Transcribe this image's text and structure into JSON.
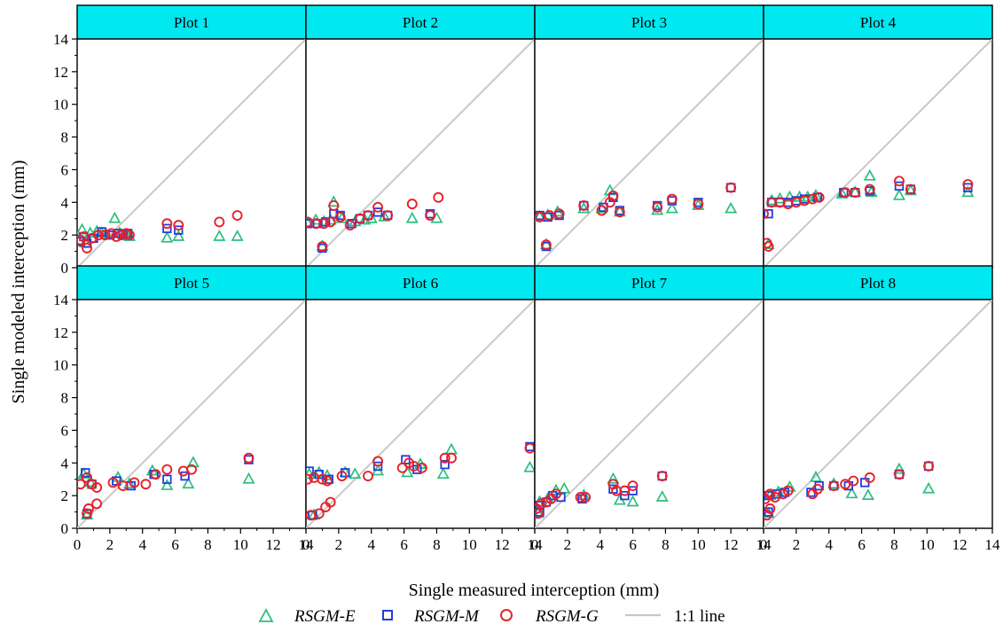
{
  "chart_data": {
    "type": "scatter",
    "xlabel": "Single measured interception (mm)",
    "ylabel": "Single modeled interception (mm)",
    "xlim": [
      0,
      14
    ],
    "ylim": [
      0,
      14
    ],
    "xticks": [
      0,
      2,
      4,
      6,
      8,
      10,
      12,
      14
    ],
    "yticks": [
      0,
      2,
      4,
      6,
      8,
      10,
      12,
      14
    ],
    "grid": false,
    "legend_position": "bottom",
    "legend": [
      {
        "key": "E",
        "label": "RSGM-E",
        "marker": "triangle",
        "color": "#2dbe7e"
      },
      {
        "key": "M",
        "label": "RSGM-M",
        "marker": "square",
        "color": "#1f3ee0"
      },
      {
        "key": "G",
        "label": "RSGM-G",
        "marker": "circle",
        "color": "#e8202a"
      },
      {
        "key": "line",
        "label": "1:1 line",
        "marker": "line",
        "color": "#c8c8c8"
      }
    ],
    "strip_color": "#00e8f0",
    "panels": [
      {
        "title": "Plot 1",
        "E": [
          [
            0.3,
            2.3
          ],
          [
            0.8,
            2.1
          ],
          [
            1.2,
            2.2
          ],
          [
            1.8,
            2.0
          ],
          [
            2.3,
            3.0
          ],
          [
            2.6,
            2.1
          ],
          [
            3.0,
            2.0
          ],
          [
            3.2,
            1.9
          ],
          [
            5.5,
            1.8
          ],
          [
            6.2,
            1.9
          ],
          [
            8.7,
            1.9
          ],
          [
            9.8,
            1.9
          ],
          [
            0.5,
            1.5
          ],
          [
            1.5,
            2.1
          ]
        ],
        "M": [
          [
            0.2,
            1.6
          ],
          [
            0.6,
            1.5
          ],
          [
            1.0,
            1.8
          ],
          [
            1.5,
            2.2
          ],
          [
            2.0,
            2.0
          ],
          [
            2.5,
            2.1
          ],
          [
            2.8,
            2.0
          ],
          [
            3.1,
            2.1
          ],
          [
            5.5,
            2.4
          ],
          [
            6.2,
            2.3
          ],
          [
            0.4,
            1.9
          ]
        ],
        "G": [
          [
            0.2,
            1.7
          ],
          [
            0.4,
            1.9
          ],
          [
            0.6,
            1.2
          ],
          [
            0.9,
            1.8
          ],
          [
            1.3,
            2.0
          ],
          [
            1.7,
            2.0
          ],
          [
            2.1,
            2.1
          ],
          [
            2.4,
            1.9
          ],
          [
            2.7,
            2.0
          ],
          [
            3.0,
            2.1
          ],
          [
            3.2,
            2.0
          ],
          [
            5.5,
            2.7
          ],
          [
            6.2,
            2.6
          ],
          [
            8.7,
            2.8
          ],
          [
            9.8,
            3.2
          ]
        ]
      },
      {
        "title": "Plot 2",
        "E": [
          [
            0.1,
            2.7
          ],
          [
            0.6,
            2.9
          ],
          [
            1.1,
            2.8
          ],
          [
            1.5,
            2.9
          ],
          [
            1.7,
            4.0
          ],
          [
            2.2,
            3.0
          ],
          [
            3.0,
            2.8
          ],
          [
            3.6,
            2.9
          ],
          [
            4.0,
            3.0
          ],
          [
            4.8,
            3.1
          ],
          [
            6.5,
            3.0
          ],
          [
            8.0,
            3.0
          ],
          [
            1.0,
            1.3
          ]
        ],
        "M": [
          [
            0.1,
            2.7
          ],
          [
            0.7,
            2.7
          ],
          [
            1.2,
            2.8
          ],
          [
            1.7,
            3.3
          ],
          [
            2.1,
            3.2
          ],
          [
            2.8,
            2.7
          ],
          [
            3.3,
            3.0
          ],
          [
            3.8,
            3.2
          ],
          [
            4.4,
            3.4
          ],
          [
            5.0,
            3.2
          ],
          [
            7.6,
            3.3
          ],
          [
            1.0,
            1.2
          ]
        ],
        "G": [
          [
            0.1,
            2.8
          ],
          [
            0.6,
            2.7
          ],
          [
            1.1,
            2.7
          ],
          [
            1.5,
            2.8
          ],
          [
            1.7,
            3.8
          ],
          [
            2.1,
            3.1
          ],
          [
            2.7,
            2.6
          ],
          [
            3.3,
            3.0
          ],
          [
            3.8,
            3.2
          ],
          [
            4.4,
            3.7
          ],
          [
            5.0,
            3.2
          ],
          [
            6.5,
            3.9
          ],
          [
            7.6,
            3.2
          ],
          [
            8.1,
            4.3
          ],
          [
            1.0,
            1.3
          ]
        ]
      },
      {
        "title": "Plot 3",
        "E": [
          [
            0.3,
            3.1
          ],
          [
            0.8,
            3.2
          ],
          [
            1.4,
            3.4
          ],
          [
            3.0,
            3.6
          ],
          [
            4.1,
            3.6
          ],
          [
            4.6,
            4.7
          ],
          [
            5.2,
            3.4
          ],
          [
            7.5,
            3.5
          ],
          [
            8.4,
            3.6
          ],
          [
            10.0,
            3.8
          ],
          [
            12.0,
            3.6
          ],
          [
            0.7,
            1.4
          ]
        ],
        "M": [
          [
            0.3,
            3.2
          ],
          [
            0.8,
            3.1
          ],
          [
            1.5,
            3.2
          ],
          [
            3.0,
            3.8
          ],
          [
            4.2,
            3.7
          ],
          [
            4.8,
            4.3
          ],
          [
            5.2,
            3.5
          ],
          [
            7.5,
            3.8
          ],
          [
            8.4,
            4.1
          ],
          [
            10.0,
            4.0
          ],
          [
            12.0,
            4.9
          ],
          [
            0.7,
            1.3
          ]
        ],
        "G": [
          [
            0.3,
            3.1
          ],
          [
            0.9,
            3.2
          ],
          [
            1.5,
            3.3
          ],
          [
            3.0,
            3.8
          ],
          [
            4.1,
            3.5
          ],
          [
            4.6,
            4.0
          ],
          [
            4.8,
            4.4
          ],
          [
            5.2,
            3.4
          ],
          [
            7.5,
            3.7
          ],
          [
            8.4,
            4.2
          ],
          [
            10.0,
            3.9
          ],
          [
            12.0,
            4.9
          ],
          [
            0.7,
            1.4
          ]
        ]
      },
      {
        "title": "Plot 4",
        "E": [
          [
            0.5,
            4.1
          ],
          [
            1.0,
            4.2
          ],
          [
            1.6,
            4.3
          ],
          [
            2.2,
            4.3
          ],
          [
            2.7,
            4.3
          ],
          [
            3.2,
            4.4
          ],
          [
            4.8,
            4.5
          ],
          [
            5.6,
            4.6
          ],
          [
            6.5,
            5.6
          ],
          [
            6.6,
            4.6
          ],
          [
            8.3,
            4.4
          ],
          [
            9.0,
            4.7
          ],
          [
            12.5,
            4.6
          ],
          [
            0.3,
            1.4
          ]
        ],
        "M": [
          [
            0.5,
            4.0
          ],
          [
            1.0,
            4.0
          ],
          [
            1.5,
            4.0
          ],
          [
            2.0,
            4.1
          ],
          [
            2.5,
            4.2
          ],
          [
            3.3,
            4.3
          ],
          [
            4.9,
            4.6
          ],
          [
            5.6,
            4.6
          ],
          [
            6.5,
            4.7
          ],
          [
            8.3,
            5.0
          ],
          [
            9.0,
            4.8
          ],
          [
            12.5,
            4.9
          ],
          [
            0.3,
            3.3
          ]
        ],
        "G": [
          [
            0.0,
            3.3
          ],
          [
            0.5,
            4.0
          ],
          [
            1.0,
            4.0
          ],
          [
            1.5,
            3.9
          ],
          [
            2.0,
            4.0
          ],
          [
            2.5,
            4.1
          ],
          [
            3.0,
            4.2
          ],
          [
            3.4,
            4.3
          ],
          [
            5.0,
            4.6
          ],
          [
            5.6,
            4.6
          ],
          [
            6.5,
            4.8
          ],
          [
            8.3,
            5.3
          ],
          [
            9.0,
            4.8
          ],
          [
            12.5,
            5.1
          ],
          [
            0.3,
            1.3
          ],
          [
            0.2,
            1.5
          ]
        ]
      },
      {
        "title": "Plot 5",
        "E": [
          [
            0.4,
            3.3
          ],
          [
            0.8,
            2.8
          ],
          [
            2.5,
            3.1
          ],
          [
            3.2,
            2.7
          ],
          [
            4.6,
            3.5
          ],
          [
            5.5,
            2.6
          ],
          [
            6.8,
            2.7
          ],
          [
            7.1,
            4.0
          ],
          [
            10.5,
            3.0
          ],
          [
            0.6,
            0.8
          ]
        ],
        "M": [
          [
            0.5,
            3.4
          ],
          [
            0.9,
            2.7
          ],
          [
            2.4,
            2.9
          ],
          [
            3.3,
            2.6
          ],
          [
            4.7,
            3.3
          ],
          [
            5.5,
            3.0
          ],
          [
            6.6,
            3.2
          ],
          [
            10.5,
            4.2
          ],
          [
            0.6,
            0.9
          ]
        ],
        "G": [
          [
            0.2,
            2.7
          ],
          [
            0.6,
            3.1
          ],
          [
            0.9,
            2.7
          ],
          [
            1.2,
            2.5
          ],
          [
            2.2,
            2.8
          ],
          [
            2.8,
            2.6
          ],
          [
            3.5,
            2.8
          ],
          [
            4.2,
            2.7
          ],
          [
            4.8,
            3.3
          ],
          [
            5.5,
            3.6
          ],
          [
            6.5,
            3.5
          ],
          [
            7.0,
            3.6
          ],
          [
            10.5,
            4.3
          ],
          [
            0.7,
            1.2
          ],
          [
            1.2,
            1.5
          ],
          [
            0.6,
            0.9
          ]
        ]
      },
      {
        "title": "Plot 6",
        "E": [
          [
            0.2,
            3.3
          ],
          [
            0.8,
            3.4
          ],
          [
            1.3,
            3.2
          ],
          [
            2.4,
            3.4
          ],
          [
            3.0,
            3.3
          ],
          [
            4.4,
            3.5
          ],
          [
            6.2,
            3.4
          ],
          [
            7.0,
            3.9
          ],
          [
            8.4,
            3.3
          ],
          [
            8.9,
            4.8
          ],
          [
            13.7,
            3.7
          ],
          [
            0.5,
            0.8
          ]
        ],
        "M": [
          [
            0.2,
            3.5
          ],
          [
            0.8,
            3.3
          ],
          [
            1.4,
            3.0
          ],
          [
            2.4,
            3.4
          ],
          [
            4.4,
            3.8
          ],
          [
            6.1,
            4.2
          ],
          [
            6.8,
            3.6
          ],
          [
            8.5,
            3.9
          ],
          [
            13.7,
            5.0
          ],
          [
            0.4,
            0.8
          ]
        ],
        "G": [
          [
            0.1,
            3.0
          ],
          [
            0.5,
            3.1
          ],
          [
            1.0,
            3.0
          ],
          [
            1.3,
            2.9
          ],
          [
            2.2,
            3.2
          ],
          [
            3.8,
            3.2
          ],
          [
            4.4,
            4.1
          ],
          [
            5.9,
            3.7
          ],
          [
            6.3,
            4.0
          ],
          [
            6.6,
            3.8
          ],
          [
            7.1,
            3.7
          ],
          [
            8.5,
            4.3
          ],
          [
            8.9,
            4.3
          ],
          [
            13.7,
            4.9
          ],
          [
            0.3,
            0.8
          ],
          [
            0.8,
            0.9
          ],
          [
            1.2,
            1.3
          ],
          [
            1.5,
            1.6
          ]
        ]
      },
      {
        "title": "Plot 7",
        "E": [
          [
            0.3,
            1.6
          ],
          [
            0.8,
            1.8
          ],
          [
            1.3,
            2.3
          ],
          [
            1.8,
            2.4
          ],
          [
            3.0,
            2.0
          ],
          [
            4.8,
            3.0
          ],
          [
            5.2,
            1.7
          ],
          [
            6.0,
            1.6
          ],
          [
            7.8,
            1.9
          ],
          [
            0.2,
            0.9
          ]
        ],
        "M": [
          [
            0.3,
            1.4
          ],
          [
            0.7,
            1.6
          ],
          [
            1.1,
            2.0
          ],
          [
            1.6,
            1.9
          ],
          [
            2.9,
            1.8
          ],
          [
            4.8,
            2.4
          ],
          [
            5.5,
            2.0
          ],
          [
            6.0,
            2.3
          ],
          [
            7.8,
            3.2
          ],
          [
            0.3,
            1.0
          ]
        ],
        "G": [
          [
            0.1,
            1.2
          ],
          [
            0.4,
            1.5
          ],
          [
            0.7,
            1.6
          ],
          [
            1.0,
            1.8
          ],
          [
            1.3,
            2.1
          ],
          [
            2.8,
            1.9
          ],
          [
            3.1,
            1.9
          ],
          [
            4.8,
            2.7
          ],
          [
            5.0,
            2.3
          ],
          [
            5.5,
            2.3
          ],
          [
            6.0,
            2.6
          ],
          [
            7.8,
            3.2
          ],
          [
            0.2,
            0.9
          ]
        ]
      },
      {
        "title": "Plot 8",
        "E": [
          [
            0.4,
            2.0
          ],
          [
            0.9,
            2.2
          ],
          [
            1.6,
            2.5
          ],
          [
            3.2,
            3.1
          ],
          [
            4.3,
            2.7
          ],
          [
            5.4,
            2.1
          ],
          [
            6.4,
            2.0
          ],
          [
            8.3,
            3.6
          ],
          [
            10.1,
            2.4
          ],
          [
            0.3,
            0.9
          ]
        ],
        "M": [
          [
            0.3,
            2.0
          ],
          [
            0.8,
            2.1
          ],
          [
            1.3,
            2.2
          ],
          [
            2.9,
            2.2
          ],
          [
            3.4,
            2.6
          ],
          [
            4.3,
            2.6
          ],
          [
            5.2,
            2.6
          ],
          [
            6.2,
            2.8
          ],
          [
            8.3,
            3.3
          ],
          [
            10.1,
            3.8
          ],
          [
            0.3,
            1.0
          ]
        ],
        "G": [
          [
            0.1,
            1.8
          ],
          [
            0.4,
            2.1
          ],
          [
            0.7,
            1.9
          ],
          [
            1.2,
            2.1
          ],
          [
            1.5,
            2.3
          ],
          [
            3.0,
            2.1
          ],
          [
            3.3,
            2.4
          ],
          [
            4.3,
            2.6
          ],
          [
            5.0,
            2.7
          ],
          [
            5.5,
            2.9
          ],
          [
            6.5,
            3.1
          ],
          [
            8.3,
            3.3
          ],
          [
            10.1,
            3.8
          ],
          [
            0.4,
            1.2
          ],
          [
            0.2,
            0.8
          ]
        ]
      }
    ]
  }
}
